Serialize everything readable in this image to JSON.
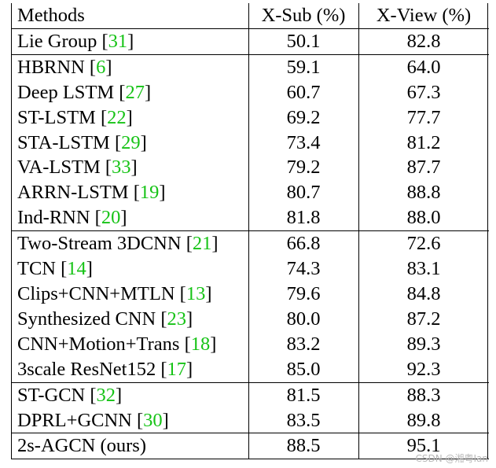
{
  "table": {
    "headers": {
      "method": "Methods",
      "xsub": "X-Sub (%)",
      "xview": "X-View (%)"
    },
    "groups": [
      [
        {
          "method": "Lie Group",
          "ref": "31",
          "xsub": "50.1",
          "xview": "82.8"
        }
      ],
      [
        {
          "method": "HBRNN",
          "ref": "6",
          "xsub": "59.1",
          "xview": "64.0"
        },
        {
          "method": "Deep LSTM",
          "ref": "27",
          "xsub": "60.7",
          "xview": "67.3"
        },
        {
          "method": "ST-LSTM",
          "ref": "22",
          "xsub": "69.2",
          "xview": "77.7"
        },
        {
          "method": "STA-LSTM",
          "ref": "29",
          "xsub": "73.4",
          "xview": "81.2"
        },
        {
          "method": "VA-LSTM",
          "ref": "33",
          "xsub": "79.2",
          "xview": "87.7"
        },
        {
          "method": "ARRN-LSTM",
          "ref": "19",
          "xsub": "80.7",
          "xview": "88.8"
        },
        {
          "method": "Ind-RNN",
          "ref": "20",
          "xsub": "81.8",
          "xview": "88.0"
        }
      ],
      [
        {
          "method": "Two-Stream 3DCNN",
          "ref": "21",
          "xsub": "66.8",
          "xview": "72.6"
        },
        {
          "method": "TCN",
          "ref": "14",
          "xsub": "74.3",
          "xview": "83.1"
        },
        {
          "method": "Clips+CNN+MTLN",
          "ref": "13",
          "xsub": "79.6",
          "xview": "84.8"
        },
        {
          "method": "Synthesized CNN",
          "ref": "23",
          "xsub": "80.0",
          "xview": "87.2"
        },
        {
          "method": "CNN+Motion+Trans",
          "ref": "18",
          "xsub": "83.2",
          "xview": "89.3"
        },
        {
          "method": "3scale ResNet152",
          "ref": "17",
          "xsub": "85.0",
          "xview": "92.3"
        }
      ],
      [
        {
          "method": "ST-GCN",
          "ref": "32",
          "xsub": "81.5",
          "xview": "88.3"
        },
        {
          "method": "DPRL+GCNN",
          "ref": "30",
          "xsub": "83.5",
          "xview": "89.8"
        }
      ],
      [
        {
          "method": "2s-AGCN (ours)",
          "ref": "",
          "xsub": "88.5",
          "xview": "95.1"
        }
      ]
    ]
  },
  "watermark": "CSDN @湘粤Ian",
  "colors": {
    "citation": "#16c316",
    "rule": "#000000"
  }
}
